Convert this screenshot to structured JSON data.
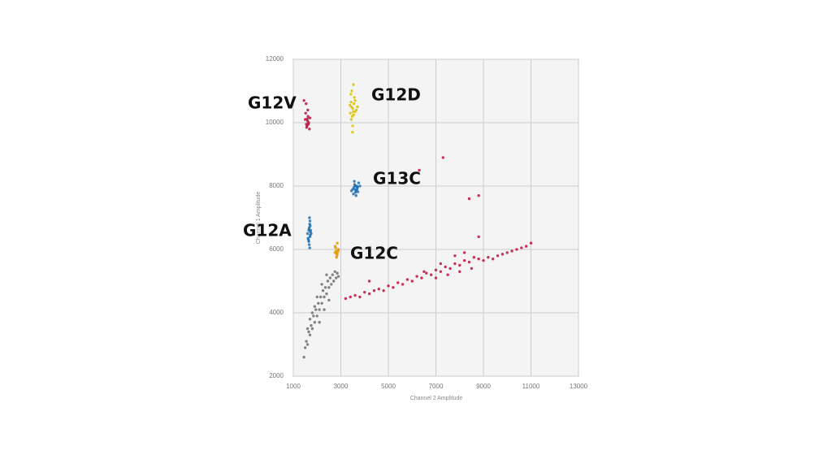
{
  "chart_data": {
    "type": "scatter",
    "x_label": "Channel 2 Amplitude",
    "y_label": "Channel 1 Amplitude",
    "xlim": [
      1000,
      13000
    ],
    "xticks": [
      1000,
      3000,
      5000,
      7000,
      9000,
      11000,
      13000
    ],
    "ylim": [
      2000,
      12000
    ],
    "yticks": [
      2000,
      4000,
      6000,
      8000,
      10000,
      12000
    ],
    "grid": true,
    "series": [
      {
        "name": "G12V",
        "color": "#b5123f",
        "x": [
          1500,
          1550,
          1600,
          1620,
          1580,
          1650,
          1520,
          1700,
          1560,
          1610,
          1540,
          1680,
          1590,
          1450,
          1630
        ],
        "values": [
          10100,
          9950,
          10050,
          10200,
          9900,
          10000,
          10300,
          10150,
          9850,
          10400,
          10600,
          9800,
          10120,
          10700,
          9950
        ]
      },
      {
        "name": "G12D",
        "color": "#d9c200",
        "x": [
          3400,
          3450,
          3500,
          3550,
          3480,
          3600,
          3420,
          3520,
          3380,
          3650,
          3460,
          3540,
          3500,
          3430,
          3570,
          3490,
          3610,
          3530,
          3440,
          3700
        ],
        "values": [
          10300,
          10500,
          10450,
          10600,
          10200,
          10700,
          10900,
          10350,
          10550,
          10400,
          11000,
          10250,
          9900,
          10650,
          10800,
          9700,
          10350,
          11200,
          10100,
          10500
        ]
      },
      {
        "name": "G13C",
        "color": "#1f6fb0",
        "x": [
          3500,
          3550,
          3600,
          3650,
          3700,
          3580,
          3620,
          3680,
          3750,
          3530,
          3660,
          3610,
          3720,
          3570,
          3640,
          3690,
          3800,
          3450
        ],
        "values": [
          7900,
          7950,
          8000,
          7850,
          7950,
          8050,
          7800,
          7900,
          8100,
          7750,
          8000,
          7880,
          7820,
          8150,
          7700,
          7980,
          8000,
          7850
        ]
      },
      {
        "name": "G12A",
        "color": "#1f6fb0",
        "x": [
          1600,
          1650,
          1700,
          1680,
          1720,
          1640,
          1690,
          1710,
          1660,
          1750,
          1620,
          1700,
          1670,
          1730,
          1650,
          1690,
          1710,
          1680
        ],
        "values": [
          6500,
          6600,
          6400,
          6700,
          6550,
          6300,
          6800,
          6450,
          6650,
          6500,
          6350,
          6900,
          6150,
          6600,
          6250,
          6050,
          6750,
          7000
        ]
      },
      {
        "name": "G12C",
        "color": "#e59b00",
        "x": [
          2750,
          2800,
          2850,
          2900,
          2780,
          2830,
          2870,
          2760,
          2820,
          2890,
          2850,
          2810
        ],
        "values": [
          5900,
          5950,
          5850,
          6000,
          6050,
          5800,
          5920,
          6100,
          5750,
          5980,
          6200,
          5880
        ]
      },
      {
        "color": "#6e6e6e",
        "x": [
          1450,
          1500,
          1550,
          1600,
          1650,
          1700,
          1750,
          1800,
          1850,
          1900,
          1950,
          2000,
          2050,
          2100,
          2150,
          2200,
          2250,
          2300,
          2350,
          2400,
          2450,
          2500,
          2550,
          2600,
          2650,
          2700,
          2750,
          2800,
          2850,
          2900,
          1700,
          1900,
          2100,
          2300,
          2500,
          2000,
          2200,
          2400,
          1800,
          1600
        ],
        "values": [
          2600,
          2900,
          3100,
          3000,
          3400,
          3300,
          3600,
          3500,
          3900,
          3700,
          4100,
          3900,
          4300,
          4100,
          4500,
          4300,
          4700,
          4500,
          4800,
          4600,
          5000,
          4800,
          5100,
          4900,
          5200,
          5000,
          5300,
          5100,
          5250,
          5150,
          3800,
          4200,
          3700,
          4100,
          4400,
          4500,
          4900,
          5200,
          4000,
          3500
        ]
      },
      {
        "color": "#c0103c",
        "x": [
          3200,
          3400,
          3600,
          3800,
          4000,
          4200,
          4400,
          4600,
          4800,
          5000,
          5200,
          5400,
          5600,
          5800,
          6000,
          6200,
          6400,
          6600,
          6800,
          7000,
          7200,
          7400,
          7600,
          7800,
          8000,
          8200,
          8400,
          8600,
          8800,
          9000,
          9200,
          9400,
          9600,
          9800,
          10000,
          10200,
          10400,
          10600,
          10800,
          11000,
          7000,
          7500,
          8000,
          8500,
          6500,
          7200,
          7800,
          8200,
          8800,
          7300,
          8400,
          6300,
          8800,
          4200
        ],
        "values": [
          4450,
          4500,
          4550,
          4500,
          4650,
          4600,
          4700,
          4750,
          4700,
          4850,
          4800,
          4950,
          4900,
          5050,
          5000,
          5150,
          5100,
          5250,
          5200,
          5350,
          5300,
          5450,
          5400,
          5550,
          5500,
          5650,
          5600,
          5750,
          5700,
          5650,
          5750,
          5700,
          5800,
          5850,
          5900,
          5950,
          6000,
          6050,
          6100,
          6200,
          5100,
          5200,
          5300,
          5400,
          5300,
          5550,
          5800,
          5900,
          6400,
          8900,
          7600,
          8500,
          7700,
          5000
        ]
      }
    ]
  }
}
